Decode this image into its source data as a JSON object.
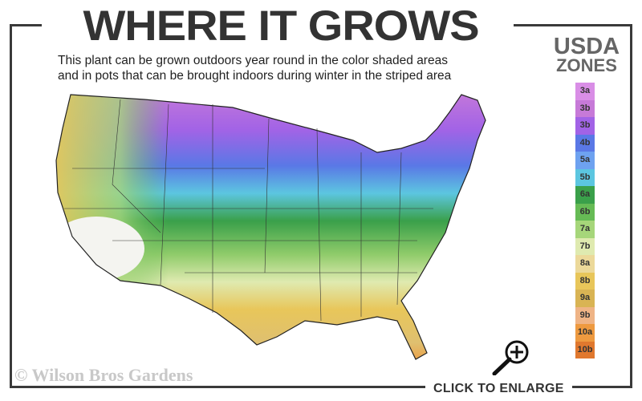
{
  "header": {
    "title": "WHERE IT GROWS",
    "subtitle_line1": "This plant can be grown outdoors year round in the color shaded areas",
    "subtitle_line2": "and in pots that can be brought indoors during winter in the striped area"
  },
  "legend": {
    "title_line1": "USDA",
    "title_line2": "ZONES",
    "zones": [
      {
        "label": "3a",
        "color": "#d98ee6"
      },
      {
        "label": "3b",
        "color": "#c77ad8"
      },
      {
        "label": "3b",
        "color": "#a263e6"
      },
      {
        "label": "4b",
        "color": "#5a78e6"
      },
      {
        "label": "5a",
        "color": "#6ea2f0"
      },
      {
        "label": "5b",
        "color": "#5cc6e0"
      },
      {
        "label": "6a",
        "color": "#3aa04a"
      },
      {
        "label": "6b",
        "color": "#66bb55"
      },
      {
        "label": "7a",
        "color": "#a6d67a"
      },
      {
        "label": "7b",
        "color": "#dfeab0"
      },
      {
        "label": "8a",
        "color": "#ecd99a"
      },
      {
        "label": "8b",
        "color": "#e8c65a"
      },
      {
        "label": "9a",
        "color": "#d9b454"
      },
      {
        "label": "9b",
        "color": "#efb486"
      },
      {
        "label": "10a",
        "color": "#ee9a40"
      },
      {
        "label": "10b",
        "color": "#e0782e"
      }
    ]
  },
  "footer": {
    "copyright": "© Wilson Bros Gardens",
    "enlarge_label": "CLICK TO ENLARGE",
    "enlarge_icon": "magnifier-plus-icon"
  }
}
